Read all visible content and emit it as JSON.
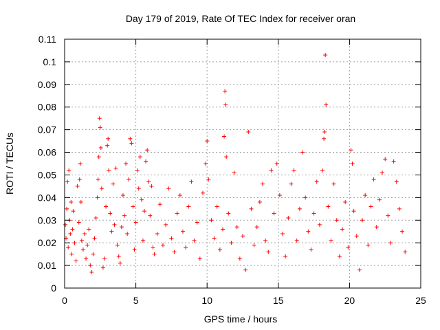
{
  "chart_data": {
    "type": "scatter",
    "title": "Day 179 of 2019, Rate Of TEC Index for receiver oran",
    "xlabel": "GPS time / hours",
    "ylabel": "ROTI / TECUs",
    "xlim": [
      0,
      25
    ],
    "ylim": [
      0,
      0.11
    ],
    "grid": true,
    "marker": "+",
    "x_ticks": [
      0,
      5,
      10,
      15,
      20,
      25
    ],
    "x_tick_labels": [
      "0",
      "5",
      "10",
      "15",
      "20",
      "25"
    ],
    "y_ticks": [
      0,
      0.01,
      0.02,
      0.03,
      0.04,
      0.05,
      0.06,
      0.07,
      0.08,
      0.09,
      0.1,
      0.11
    ],
    "y_tick_labels": [
      "0",
      "0.01",
      "0.02",
      "0.03",
      "0.04",
      "0.05",
      "0.06",
      "0.07",
      "0.08",
      "0.09",
      "0.1",
      "0.11"
    ],
    "series": [
      {
        "color": "#ff0000",
        "points": [
          [
            0.05,
            0.028
          ],
          [
            0.1,
            0.022
          ],
          [
            0.15,
            0.035
          ],
          [
            0.2,
            0.047
          ],
          [
            0.25,
            0.018
          ],
          [
            0.3,
            0.052
          ],
          [
            0.35,
            0.03
          ],
          [
            0.4,
            0.024
          ],
          [
            0.45,
            0.038
          ],
          [
            0.5,
            0.015
          ],
          [
            0.55,
            0.026
          ],
          [
            0.6,
            0.034
          ],
          [
            0.7,
            0.02
          ],
          [
            0.8,
            0.012
          ],
          [
            0.9,
            0.045
          ],
          [
            1.0,
            0.029
          ],
          [
            1.05,
            0.048
          ],
          [
            1.1,
            0.055
          ],
          [
            1.15,
            0.038
          ],
          [
            1.2,
            0.021
          ],
          [
            1.3,
            0.017
          ],
          [
            1.4,
            0.024
          ],
          [
            1.5,
            0.013
          ],
          [
            1.6,
            0.019
          ],
          [
            1.7,
            0.026
          ],
          [
            1.8,
            0.01
          ],
          [
            1.9,
            0.007
          ],
          [
            2.0,
            0.015
          ],
          [
            2.1,
            0.022
          ],
          [
            2.2,
            0.031
          ],
          [
            2.3,
            0.04
          ],
          [
            2.35,
            0.048
          ],
          [
            2.4,
            0.058
          ],
          [
            2.45,
            0.075
          ],
          [
            2.5,
            0.071
          ],
          [
            2.55,
            0.062
          ],
          [
            2.6,
            0.044
          ],
          [
            2.7,
            0.009
          ],
          [
            2.8,
            0.013
          ],
          [
            2.9,
            0.036
          ],
          [
            3.0,
            0.063
          ],
          [
            3.05,
            0.066
          ],
          [
            3.1,
            0.052
          ],
          [
            3.2,
            0.033
          ],
          [
            3.3,
            0.025
          ],
          [
            3.4,
            0.046
          ],
          [
            3.5,
            0.028
          ],
          [
            3.6,
            0.053
          ],
          [
            3.7,
            0.019
          ],
          [
            3.8,
            0.014
          ],
          [
            3.9,
            0.011
          ],
          [
            4.0,
            0.027
          ],
          [
            4.1,
            0.041
          ],
          [
            4.2,
            0.032
          ],
          [
            4.3,
            0.055
          ],
          [
            4.4,
            0.024
          ],
          [
            4.5,
            0.048
          ],
          [
            4.6,
            0.066
          ],
          [
            4.7,
            0.064
          ],
          [
            4.8,
            0.036
          ],
          [
            4.9,
            0.017
          ],
          [
            5.0,
            0.029
          ],
          [
            5.1,
            0.052
          ],
          [
            5.2,
            0.044
          ],
          [
            5.3,
            0.058
          ],
          [
            5.4,
            0.039
          ],
          [
            5.5,
            0.021
          ],
          [
            5.6,
            0.034
          ],
          [
            5.7,
            0.056
          ],
          [
            5.8,
            0.061
          ],
          [
            5.9,
            0.047
          ],
          [
            6.0,
            0.032
          ],
          [
            6.1,
            0.045
          ],
          [
            6.2,
            0.018
          ],
          [
            6.3,
            0.015
          ],
          [
            6.5,
            0.024
          ],
          [
            6.7,
            0.037
          ],
          [
            6.9,
            0.019
          ],
          [
            7.1,
            0.028
          ],
          [
            7.3,
            0.044
          ],
          [
            7.5,
            0.022
          ],
          [
            7.7,
            0.016
          ],
          [
            7.9,
            0.033
          ],
          [
            8.1,
            0.041
          ],
          [
            8.3,
            0.025
          ],
          [
            8.5,
            0.018
          ],
          [
            8.7,
            0.036
          ],
          [
            8.9,
            0.047
          ],
          [
            9.1,
            0.021
          ],
          [
            9.3,
            0.029
          ],
          [
            9.5,
            0.013
          ],
          [
            9.7,
            0.042
          ],
          [
            9.9,
            0.055
          ],
          [
            10.0,
            0.065
          ],
          [
            10.1,
            0.048
          ],
          [
            10.3,
            0.03
          ],
          [
            10.5,
            0.022
          ],
          [
            10.7,
            0.036
          ],
          [
            10.9,
            0.017
          ],
          [
            11.1,
            0.026
          ],
          [
            11.2,
            0.067
          ],
          [
            11.25,
            0.087
          ],
          [
            11.3,
            0.081
          ],
          [
            11.35,
            0.058
          ],
          [
            11.5,
            0.033
          ],
          [
            11.7,
            0.02
          ],
          [
            11.9,
            0.051
          ],
          [
            12.1,
            0.027
          ],
          [
            12.3,
            0.013
          ],
          [
            12.5,
            0.023
          ],
          [
            12.7,
            0.008
          ],
          [
            12.9,
            0.069
          ],
          [
            13.1,
            0.035
          ],
          [
            13.3,
            0.019
          ],
          [
            13.5,
            0.027
          ],
          [
            13.7,
            0.038
          ],
          [
            13.9,
            0.046
          ],
          [
            14.1,
            0.021
          ],
          [
            14.3,
            0.016
          ],
          [
            14.5,
            0.052
          ],
          [
            14.7,
            0.033
          ],
          [
            14.9,
            0.055
          ],
          [
            15.1,
            0.041
          ],
          [
            15.3,
            0.024
          ],
          [
            15.5,
            0.014
          ],
          [
            15.7,
            0.031
          ],
          [
            15.9,
            0.046
          ],
          [
            16.1,
            0.052
          ],
          [
            16.3,
            0.021
          ],
          [
            16.5,
            0.035
          ],
          [
            16.7,
            0.06
          ],
          [
            16.9,
            0.04
          ],
          [
            17.1,
            0.025
          ],
          [
            17.3,
            0.017
          ],
          [
            17.5,
            0.033
          ],
          [
            17.7,
            0.047
          ],
          [
            17.9,
            0.028
          ],
          [
            18.1,
            0.052
          ],
          [
            18.2,
            0.066
          ],
          [
            18.25,
            0.069
          ],
          [
            18.3,
            0.103
          ],
          [
            18.35,
            0.081
          ],
          [
            18.5,
            0.036
          ],
          [
            18.7,
            0.021
          ],
          [
            18.9,
            0.046
          ],
          [
            19.1,
            0.03
          ],
          [
            19.3,
            0.014
          ],
          [
            19.5,
            0.026
          ],
          [
            19.7,
            0.038
          ],
          [
            19.9,
            0.018
          ],
          [
            20.1,
            0.061
          ],
          [
            20.2,
            0.055
          ],
          [
            20.3,
            0.034
          ],
          [
            20.5,
            0.023
          ],
          [
            20.7,
            0.008
          ],
          [
            20.9,
            0.03
          ],
          [
            21.1,
            0.041
          ],
          [
            21.3,
            0.019
          ],
          [
            21.5,
            0.036
          ],
          [
            21.7,
            0.048
          ],
          [
            21.9,
            0.027
          ],
          [
            22.1,
            0.039
          ],
          [
            22.3,
            0.051
          ],
          [
            22.5,
            0.057
          ],
          [
            22.7,
            0.032
          ],
          [
            22.9,
            0.02
          ],
          [
            23.1,
            0.056
          ],
          [
            23.3,
            0.047
          ],
          [
            23.5,
            0.035
          ],
          [
            23.7,
            0.025
          ],
          [
            23.9,
            0.016
          ]
        ]
      }
    ]
  }
}
